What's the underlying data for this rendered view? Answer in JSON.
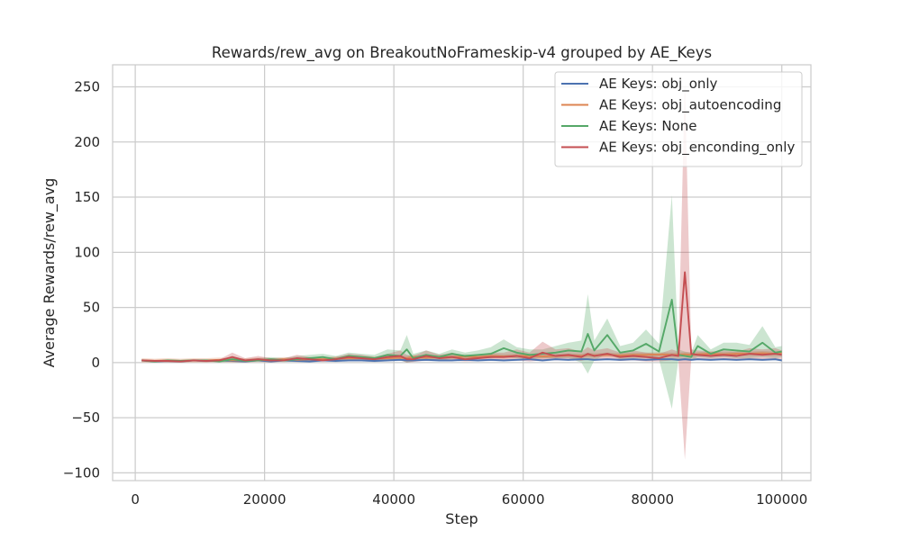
{
  "chart_data": {
    "type": "line",
    "title": "Rewards/rew_avg on BreakoutNoFrameskip-v4 grouped by AE_Keys",
    "xlabel": "Step",
    "ylabel": "Average Rewards/rew_avg",
    "xlim": [
      -3500,
      104500
    ],
    "ylim": [
      -107,
      270
    ],
    "xticks": [
      0,
      20000,
      40000,
      60000,
      80000,
      100000
    ],
    "xtick_labels": [
      "0",
      "20000",
      "40000",
      "60000",
      "80000",
      "100000"
    ],
    "yticks": [
      -100,
      -50,
      0,
      50,
      100,
      150,
      200,
      250
    ],
    "ytick_labels": [
      "−100",
      "−50",
      "0",
      "50",
      "100",
      "150",
      "200",
      "250"
    ],
    "grid": true,
    "legend_position": "top-right",
    "x": [
      1000,
      3000,
      5000,
      7000,
      9000,
      11000,
      13000,
      15000,
      17000,
      19000,
      21000,
      23000,
      25000,
      27000,
      29000,
      31000,
      33000,
      35000,
      37000,
      39000,
      41000,
      42000,
      43000,
      45000,
      47000,
      49000,
      51000,
      53000,
      55000,
      57000,
      59000,
      61000,
      63000,
      65000,
      67000,
      69000,
      70000,
      71000,
      73000,
      75000,
      77000,
      79000,
      81000,
      83000,
      84000,
      85000,
      86000,
      87000,
      89000,
      91000,
      93000,
      95000,
      97000,
      99000,
      100000
    ],
    "series": [
      {
        "name": "AE Keys: obj_only",
        "color": "#4c72b0",
        "values": [
          2,
          1,
          1.5,
          1,
          2,
          1.5,
          2,
          1.5,
          1,
          2,
          1,
          2,
          1.5,
          1,
          2,
          1.5,
          2,
          2,
          1.5,
          2,
          2.5,
          2,
          2,
          2.5,
          2,
          2,
          2.5,
          2,
          2.5,
          2,
          2.5,
          3,
          2,
          3,
          2.5,
          3,
          3,
          2.5,
          3,
          2.5,
          3,
          2.5,
          3,
          3,
          2.5,
          3,
          2.5,
          3,
          2.5,
          3,
          2.5,
          3,
          2.5,
          3,
          2
        ],
        "lower": [
          1,
          0,
          0.5,
          0,
          1,
          0.5,
          1,
          0.5,
          0,
          1,
          0,
          1,
          0.5,
          0,
          1,
          0.5,
          1,
          1,
          0.5,
          1,
          1.5,
          1,
          1,
          1.5,
          1,
          1,
          1.5,
          1,
          1.5,
          1,
          1.5,
          2,
          1,
          2,
          1.5,
          2,
          2,
          1.5,
          2,
          1.5,
          2,
          1.5,
          2,
          2,
          1.5,
          2,
          1.5,
          2,
          1.5,
          2,
          1.5,
          2,
          1.5,
          2,
          1
        ],
        "upper": [
          3,
          2,
          2.5,
          2,
          3,
          2.5,
          3,
          2.5,
          2,
          3,
          2,
          3,
          2.5,
          2,
          3,
          2.5,
          3,
          3,
          2.5,
          3,
          3.5,
          3,
          3,
          3.5,
          3,
          3,
          3.5,
          3,
          3.5,
          3,
          3.5,
          4,
          3,
          4,
          3.5,
          4,
          4,
          3.5,
          4,
          3.5,
          4,
          3.5,
          4,
          4,
          3.5,
          4,
          3.5,
          4,
          3.5,
          4,
          3.5,
          4,
          3.5,
          4,
          3
        ]
      },
      {
        "name": "AE Keys: obj_autoencoding",
        "color": "#dd8452",
        "values": [
          2,
          1.5,
          2,
          1.5,
          2,
          2,
          2.5,
          2,
          2,
          2.5,
          2,
          3,
          2.5,
          3,
          3,
          3.5,
          4,
          4,
          3.5,
          4,
          4.5,
          4,
          5,
          4.5,
          5,
          5,
          5.5,
          5,
          6,
          5.5,
          6,
          6,
          5.5,
          6,
          6.5,
          6,
          7,
          6.5,
          7,
          6.5,
          7,
          7,
          7.5,
          7,
          7,
          7.5,
          7,
          7.5,
          8,
          7.5,
          8,
          8,
          8.5,
          8,
          9
        ],
        "lower": [
          0,
          0,
          0,
          0,
          0,
          0,
          0.5,
          0,
          0,
          0.5,
          0,
          1,
          0.5,
          1,
          1,
          1.5,
          2,
          2,
          1.5,
          2,
          2.5,
          2,
          3,
          2.5,
          3,
          3,
          3.5,
          3,
          4,
          3.5,
          4,
          4,
          3.5,
          4,
          4.5,
          4,
          5,
          4.5,
          5,
          4.5,
          5,
          5,
          5.5,
          5,
          5,
          5.5,
          5,
          5.5,
          6,
          5.5,
          6,
          6,
          6.5,
          6,
          7
        ],
        "upper": [
          4,
          3.5,
          4,
          3.5,
          4,
          4,
          4.5,
          4,
          4,
          4.5,
          4,
          5,
          4.5,
          5,
          5,
          5.5,
          6,
          6,
          5.5,
          6,
          6.5,
          6,
          7,
          6.5,
          7,
          7,
          7.5,
          7,
          8,
          7.5,
          8,
          8,
          7.5,
          8,
          8.5,
          8,
          9,
          8.5,
          9,
          8.5,
          9,
          9,
          9.5,
          9,
          9,
          9.5,
          9,
          9.5,
          10,
          9.5,
          10,
          10,
          10.5,
          10,
          11
        ]
      },
      {
        "name": "AE Keys: None",
        "color": "#55a868",
        "values": [
          2,
          1,
          2,
          1.5,
          2,
          2,
          1,
          3,
          1.5,
          2,
          3,
          2,
          3,
          4,
          5,
          3,
          6,
          5,
          4,
          7,
          6,
          12,
          4,
          7,
          5,
          8,
          6,
          7,
          8,
          13,
          9,
          7,
          8,
          9,
          11,
          10,
          26,
          11,
          25,
          9,
          11,
          17,
          10,
          57,
          7,
          6,
          5,
          15,
          8,
          12,
          11,
          10,
          18,
          9,
          10
        ],
        "lower": [
          1,
          0,
          1,
          0.5,
          1,
          1,
          0,
          1,
          0.5,
          1,
          1,
          0.5,
          1,
          1.5,
          2,
          1,
          3,
          2,
          1.5,
          3,
          2,
          0,
          1,
          3,
          2,
          3.5,
          3,
          3.5,
          4,
          5,
          4,
          3,
          4,
          4,
          4,
          0,
          -10,
          2,
          8,
          3,
          4,
          4,
          3,
          -42,
          2,
          3,
          2,
          5,
          4,
          5,
          4,
          4,
          5,
          4,
          5
        ],
        "upper": [
          3,
          2,
          3,
          2.5,
          3,
          3,
          2,
          5,
          3,
          4,
          5,
          4,
          6,
          7,
          8,
          6,
          9,
          8,
          7,
          12,
          11,
          25,
          8,
          11,
          8,
          12,
          9,
          11,
          14,
          21,
          14,
          12,
          12,
          15,
          18,
          20,
          62,
          20,
          40,
          15,
          18,
          30,
          17,
          152,
          12,
          10,
          9,
          25,
          12,
          18,
          18,
          16,
          33,
          14,
          15
        ]
      },
      {
        "name": "AE Keys: obj_enconding_only",
        "color": "#c44e52",
        "values": [
          2,
          1.5,
          1.5,
          1,
          2,
          1.5,
          2,
          5,
          2,
          3,
          2,
          2,
          4,
          3,
          2,
          3,
          5,
          4,
          3,
          5,
          6,
          3,
          3,
          6,
          4,
          5,
          3,
          4,
          5,
          5,
          6,
          4,
          9,
          6,
          7,
          5,
          8,
          6,
          8,
          5,
          6,
          5,
          4,
          7,
          6,
          82,
          8,
          7,
          6,
          7,
          6,
          8,
          7,
          8,
          7
        ],
        "lower": [
          1,
          0.5,
          0.5,
          0,
          1,
          0.5,
          1,
          2,
          1,
          1.5,
          1,
          1,
          2,
          1.5,
          1,
          1.5,
          2,
          2,
          1.5,
          2,
          2,
          0,
          0.5,
          2,
          1.5,
          2,
          1,
          1.5,
          2,
          2,
          2,
          1,
          2,
          2,
          2.5,
          1.5,
          3,
          2,
          3,
          1.5,
          2,
          1,
          1,
          2,
          2,
          -88,
          4,
          3,
          2,
          3,
          2,
          3,
          2.5,
          3,
          3
        ],
        "upper": [
          3,
          2.5,
          2.5,
          2,
          3,
          2.5,
          3,
          9,
          4,
          6,
          4,
          4,
          7,
          5,
          4,
          5,
          8,
          7,
          5,
          8,
          11,
          7,
          6,
          11,
          7,
          9,
          6,
          7,
          9,
          9,
          12,
          9,
          19,
          12,
          13,
          10,
          14,
          11,
          13,
          9,
          11,
          9,
          8,
          12,
          10,
          255,
          12,
          11,
          10,
          11,
          10,
          13,
          12,
          13,
          11
        ]
      }
    ]
  }
}
